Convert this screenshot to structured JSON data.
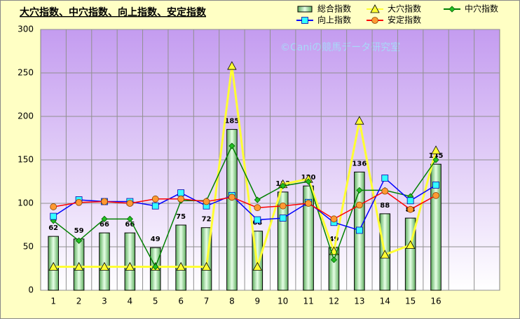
{
  "chart_data": {
    "type": "bar",
    "title": "大穴指数、中穴指数、向上指数、安定指数",
    "watermark": "©Caniの競馬データ研究室",
    "categories": [
      "1",
      "2",
      "3",
      "4",
      "5",
      "6",
      "7",
      "8",
      "9",
      "10",
      "11",
      "12",
      "13",
      "14",
      "15",
      "16",
      null,
      null
    ],
    "ylim": [
      0,
      300
    ],
    "yticks": [
      0,
      50,
      100,
      150,
      200,
      250,
      300
    ],
    "grid": true,
    "legend": "top-right",
    "series": [
      {
        "name": "総合指数",
        "type": "bar",
        "color": "#8fd08f",
        "data_labels": true,
        "values": [
          62,
          59,
          66,
          66,
          49,
          75,
          72,
          185,
          68,
          113,
          120,
          49,
          136,
          88,
          83,
          145,
          null,
          null
        ]
      },
      {
        "name": "大穴指数",
        "type": "line",
        "marker": "triangle",
        "color": "#ffff33",
        "values": [
          27,
          27,
          27,
          27,
          27,
          27,
          27,
          258,
          27,
          122,
          128,
          45,
          195,
          41,
          52,
          161,
          null,
          null
        ]
      },
      {
        "name": "中穴指数",
        "type": "line",
        "marker": "diamond",
        "color": "#008000",
        "values": [
          80,
          57,
          82,
          82,
          27,
          103,
          103,
          166,
          104,
          120,
          125,
          35,
          115,
          115,
          108,
          150,
          null,
          null
        ]
      },
      {
        "name": "向上指数",
        "type": "line",
        "marker": "square",
        "color": "#0000ff",
        "values": [
          85,
          104,
          102,
          102,
          97,
          112,
          97,
          109,
          81,
          83,
          101,
          78,
          69,
          129,
          103,
          121,
          null,
          null
        ]
      },
      {
        "name": "安定指数",
        "type": "line",
        "marker": "circle",
        "color": "#ff0000",
        "values": [
          96,
          101,
          102,
          100,
          105,
          105,
          102,
          107,
          95,
          97,
          100,
          82,
          98,
          114,
          93,
          109,
          null,
          null
        ]
      }
    ]
  }
}
